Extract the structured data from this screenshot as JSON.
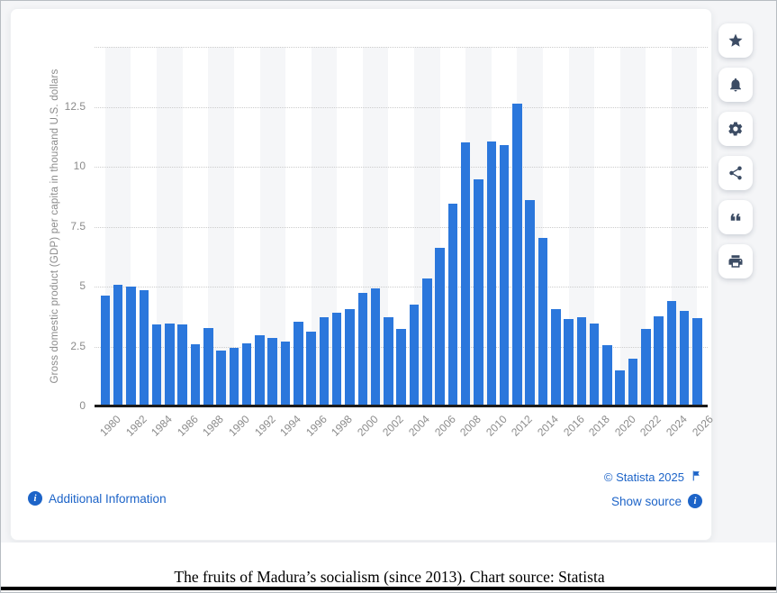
{
  "chart_data": {
    "type": "bar",
    "title": "",
    "xlabel": "",
    "ylabel": "Gross domestic product (GDP) per capita in thousand U.S. dollars",
    "ylim": [
      0,
      15
    ],
    "yticks": [
      0,
      2.5,
      5,
      7.5,
      10,
      12.5
    ],
    "ytick_labels": [
      "0",
      "2.5",
      "5",
      "7.5",
      "10",
      "12.5"
    ],
    "gridline_values": [
      2.5,
      5,
      7.5,
      10,
      12.5,
      15
    ],
    "grid": true,
    "legend": false,
    "xtick_step": 2,
    "bar_color": "#2b77dc",
    "categories": [
      "1980",
      "1981",
      "1982",
      "1983",
      "1984",
      "1985",
      "1986",
      "1987",
      "1988",
      "1989",
      "1990",
      "1991",
      "1992",
      "1993",
      "1994",
      "1995",
      "1996",
      "1997",
      "1998",
      "1999",
      "2000",
      "2001",
      "2002",
      "2003",
      "2004",
      "2005",
      "2006",
      "2007",
      "2008",
      "2009",
      "2010",
      "2011",
      "2012",
      "2013",
      "2014",
      "2015",
      "2016",
      "2017",
      "2018",
      "2019",
      "2020",
      "2021",
      "2022",
      "2023",
      "2024",
      "2025",
      "2026"
    ],
    "values": [
      4.62,
      5.07,
      5.0,
      4.85,
      3.41,
      3.45,
      3.44,
      2.6,
      3.27,
      2.34,
      2.44,
      2.65,
      2.96,
      2.85,
      2.7,
      3.55,
      3.13,
      3.73,
      3.91,
      4.06,
      4.75,
      4.91,
      3.73,
      3.25,
      4.25,
      5.35,
      6.6,
      8.46,
      11.0,
      9.48,
      11.07,
      10.9,
      12.62,
      8.62,
      7.02,
      4.05,
      3.65,
      3.74,
      3.47,
      2.55,
      1.49,
      1.98,
      3.25,
      3.75,
      4.41,
      3.98,
      3.7
    ]
  },
  "toolbar": {
    "buttons": [
      {
        "name": "favorite",
        "icon": "star-icon"
      },
      {
        "name": "notifications",
        "icon": "bell-icon"
      },
      {
        "name": "settings",
        "icon": "gear-icon"
      },
      {
        "name": "share",
        "icon": "share-icon"
      },
      {
        "name": "cite",
        "icon": "quote-icon"
      },
      {
        "name": "print",
        "icon": "printer-icon"
      }
    ]
  },
  "footer": {
    "additional_information": "Additional Information",
    "copyright": "© Statista 2025",
    "show_source": "Show source",
    "info_icon": "info-circle-icon",
    "flag_icon": "flag-icon"
  },
  "caption": "The fruits of Madura’s socialism (since 2013). Chart source: Statista",
  "colors": {
    "bar": "#2b77dc",
    "link_blue": "#1d64c8",
    "axis_text": "#8b8b8b",
    "icon_navy": "#3c4c64",
    "baseline": "#1b1b1b",
    "stripe": "#f5f6f8",
    "page_background": "#f4f5f7"
  }
}
